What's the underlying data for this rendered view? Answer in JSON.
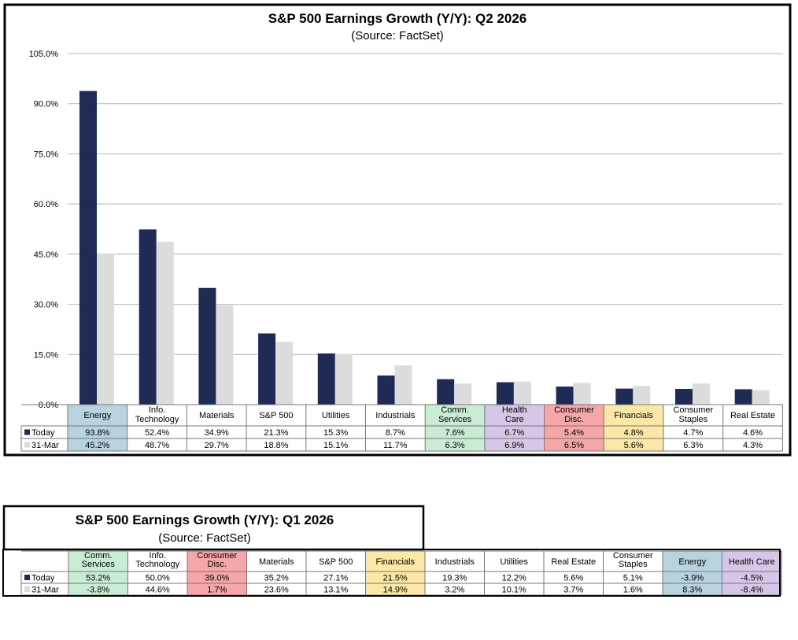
{
  "charts": [
    {
      "title": "S&P 500 Earnings Growth (Y/Y): Q2 2026",
      "subtitle": "(Source: FactSet)"
    },
    {
      "title": "S&P 500 Earnings Growth (Y/Y): Q1 2026",
      "subtitle": "(Source: FactSet)"
    }
  ],
  "colors": {
    "today": "#1f2a55",
    "mar31": "#dcdcdc",
    "gridline": "#b8b8b8",
    "cell_blue": "#b7d3de",
    "cell_green": "#c8ecd4",
    "cell_purple": "#d6c7e8",
    "cell_red": "#f6a6a6",
    "cell_yellow": "#fbe7a6"
  },
  "chart_data": [
    {
      "type": "bar",
      "title": "S&P 500 Earnings Growth (Y/Y): Q2 2026",
      "subtitle": "(Source: FactSet)",
      "categories": [
        [
          "Energy"
        ],
        [
          "Info.",
          "Technology"
        ],
        [
          "Materials"
        ],
        [
          "S&P 500"
        ],
        [
          "Utilities"
        ],
        [
          "Industrials"
        ],
        [
          "Comm.",
          "Services"
        ],
        [
          "Health",
          "Care"
        ],
        [
          "Consumer",
          "Disc."
        ],
        [
          "Financials"
        ],
        [
          "Consumer",
          "Staples"
        ],
        [
          "Real Estate"
        ]
      ],
      "category_highlight": [
        "blue",
        "",
        "",
        "",
        "",
        "",
        "green",
        "purple",
        "red",
        "yellow",
        "",
        ""
      ],
      "series": [
        {
          "name": "Today",
          "values": [
            93.8,
            52.4,
            34.9,
            21.3,
            15.3,
            8.7,
            7.6,
            6.7,
            5.4,
            4.8,
            4.7,
            4.6
          ],
          "labels": [
            "93.8%",
            "52.4%",
            "34.9%",
            "21.3%",
            "15.3%",
            "8.7%",
            "7.6%",
            "6.7%",
            "5.4%",
            "4.8%",
            "4.7%",
            "4.6%"
          ]
        },
        {
          "name": "31-Mar",
          "values": [
            45.2,
            48.7,
            29.7,
            18.8,
            15.1,
            11.7,
            6.3,
            6.9,
            6.5,
            5.6,
            6.3,
            4.3
          ],
          "labels": [
            "45.2%",
            "48.7%",
            "29.7%",
            "18.8%",
            "15.1%",
            "11.7%",
            "6.3%",
            "6.9%",
            "6.5%",
            "5.6%",
            "6.3%",
            "4.3%"
          ]
        }
      ],
      "ylim": [
        0,
        105
      ],
      "yticks": [
        0,
        15,
        30,
        45,
        60,
        75,
        90,
        105
      ],
      "ytick_labels": [
        "0.0%",
        "15.0%",
        "30.0%",
        "45.0%",
        "60.0%",
        "75.0%",
        "90.0%",
        "105.0%"
      ],
      "grid": true,
      "legend": "data-table"
    },
    {
      "type": "table",
      "title": "S&P 500 Earnings Growth (Y/Y): Q1 2026",
      "subtitle": "(Source: FactSet)",
      "categories": [
        [
          "Comm.",
          "Services"
        ],
        [
          "Info.",
          "Technology"
        ],
        [
          "Consumer",
          "Disc."
        ],
        [
          "Materials"
        ],
        [
          "S&P 500"
        ],
        [
          "Financials"
        ],
        [
          "Industrials"
        ],
        [
          "Utilities"
        ],
        [
          "Real Estate"
        ],
        [
          "Consumer",
          "Staples"
        ],
        [
          "Energy"
        ],
        [
          "Health Care"
        ]
      ],
      "category_highlight": [
        "green",
        "",
        "red",
        "",
        "",
        "yellow",
        "",
        "",
        "",
        "",
        "blue",
        "purple"
      ],
      "series": [
        {
          "name": "Today",
          "values": [
            53.2,
            50.0,
            39.0,
            35.2,
            27.1,
            21.5,
            19.3,
            12.2,
            5.6,
            5.1,
            -3.9,
            -4.5
          ],
          "labels": [
            "53.2%",
            "50.0%",
            "39.0%",
            "35.2%",
            "27.1%",
            "21.5%",
            "19.3%",
            "12.2%",
            "5.6%",
            "5.1%",
            "-3.9%",
            "-4.5%"
          ]
        },
        {
          "name": "31-Mar",
          "values": [
            -3.8,
            44.6,
            1.7,
            23.6,
            13.1,
            14.9,
            3.2,
            10.1,
            3.7,
            1.6,
            8.3,
            -8.4
          ],
          "labels": [
            "-3.8%",
            "44.6%",
            "1.7%",
            "23.6%",
            "13.1%",
            "14.9%",
            "3.2%",
            "10.1%",
            "3.7%",
            "1.6%",
            "8.3%",
            "-8.4%"
          ]
        }
      ]
    }
  ]
}
